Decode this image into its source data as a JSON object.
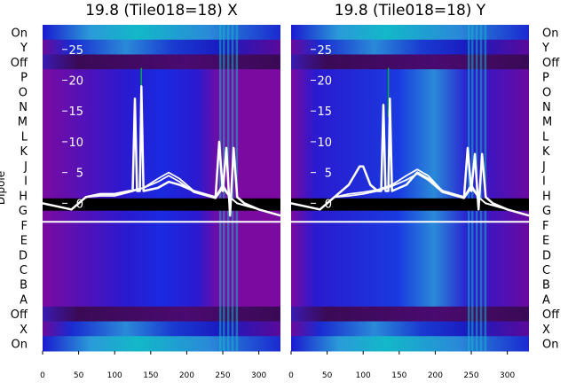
{
  "colors": {
    "purple": "#7a0aa0",
    "dark_purple": "#3a0a55",
    "blue": "#1a1ad0",
    "light_blue": "#2a8ad8",
    "cyan": "#12b8c8",
    "green": "#10a840",
    "trace": "#ffffff",
    "black_band": "#000000"
  },
  "chart_data": [
    {
      "type": "heatmap",
      "title": "19.8 (Tile018=18) X",
      "ylabel": "Dipole",
      "xlim": [
        0,
        330
      ],
      "x_ticks": [
        "0",
        "50",
        "100",
        "150",
        "200",
        "250",
        "300"
      ],
      "x_tick_values": [
        0,
        50,
        100,
        150,
        200,
        250,
        300
      ],
      "y_ticks": [
        "0",
        "5",
        "10",
        "15",
        "20",
        "25"
      ],
      "y_tick_values": [
        0,
        5,
        10,
        15,
        20,
        25
      ],
      "ylim": [
        -24,
        29
      ],
      "rows_top_to_bottom": [
        "On",
        "Y",
        "Off",
        "P",
        "O",
        "N",
        "M",
        "L",
        "K",
        "J",
        "I",
        "H",
        "G",
        "F",
        "E",
        "D",
        "C",
        "B",
        "A",
        "Off",
        "X",
        "On"
      ],
      "traces": [
        {
          "x": [
            0,
            20,
            40,
            60,
            80,
            100,
            120,
            125,
            128,
            131,
            135,
            137,
            140,
            160,
            175,
            190,
            210,
            240,
            245,
            250,
            255,
            260,
            265,
            270,
            280,
            300,
            330
          ],
          "y": [
            0,
            -0.5,
            -1,
            1,
            1.5,
            1.5,
            2,
            2,
            17,
            2,
            2,
            19,
            2,
            2.5,
            3.5,
            3,
            2,
            1,
            10,
            2,
            9,
            -2,
            9,
            1,
            0,
            -1,
            -2
          ]
        },
        {
          "x": [
            0,
            20,
            40,
            60,
            80,
            100,
            120,
            140,
            160,
            175,
            190,
            210,
            240,
            250,
            260,
            270,
            300,
            330
          ],
          "y": [
            0,
            -0.5,
            -1,
            1,
            1.5,
            1.5,
            2,
            2.5,
            4,
            5,
            4,
            2,
            1,
            3,
            1,
            0,
            -1,
            -2
          ]
        },
        {
          "x": [
            0,
            20,
            40,
            60,
            80,
            100,
            120,
            140,
            160,
            175,
            190,
            210,
            240,
            250,
            260,
            270,
            300,
            330
          ],
          "y": [
            0,
            -0.5,
            -1,
            1,
            1.2,
            1.2,
            1.8,
            2.5,
            3.5,
            4.5,
            3.5,
            1.8,
            0.8,
            2.5,
            1,
            0,
            -1,
            -2
          ]
        }
      ]
    },
    {
      "type": "heatmap",
      "title": "19.8 (Tile018=18) Y",
      "ylabel": "",
      "xlim": [
        0,
        330
      ],
      "x_ticks": [
        "0",
        "50",
        "100",
        "150",
        "200",
        "250",
        "300"
      ],
      "x_tick_values": [
        0,
        50,
        100,
        150,
        200,
        250,
        300
      ],
      "y_ticks": [
        "0",
        "5",
        "10",
        "15",
        "20",
        "25"
      ],
      "y_tick_values": [
        0,
        5,
        10,
        15,
        20,
        25
      ],
      "ylim": [
        -24,
        29
      ],
      "rows_top_to_bottom": [
        "On",
        "Y",
        "Off",
        "P",
        "O",
        "N",
        "M",
        "L",
        "K",
        "J",
        "I",
        "H",
        "G",
        "F",
        "E",
        "D",
        "C",
        "B",
        "A",
        "Off",
        "X",
        "On"
      ],
      "traces": [
        {
          "x": [
            0,
            20,
            40,
            60,
            80,
            95,
            100,
            110,
            120,
            125,
            128,
            131,
            135,
            137,
            140,
            160,
            175,
            190,
            210,
            240,
            245,
            250,
            255,
            260,
            265,
            270,
            280,
            300,
            330
          ],
          "y": [
            0,
            -0.5,
            -1,
            1,
            3,
            6,
            6,
            3,
            2,
            2,
            16,
            2,
            2,
            17,
            2,
            3,
            5,
            4,
            2,
            1,
            9,
            2,
            8,
            -1,
            8,
            1,
            0,
            -1,
            -2
          ]
        },
        {
          "x": [
            0,
            20,
            40,
            60,
            80,
            100,
            120,
            140,
            160,
            175,
            190,
            210,
            240,
            250,
            260,
            270,
            300,
            330
          ],
          "y": [
            0,
            -0.5,
            -1,
            1,
            1.5,
            1.8,
            2.2,
            3,
            4.5,
            5.5,
            4.5,
            2,
            1,
            3,
            1,
            0,
            -1,
            -2
          ]
        },
        {
          "x": [
            0,
            20,
            40,
            60,
            80,
            100,
            120,
            140,
            160,
            175,
            190,
            210,
            240,
            250,
            260,
            270,
            300,
            330
          ],
          "y": [
            0,
            -0.5,
            -1,
            1,
            1.2,
            1.5,
            2,
            2.8,
            3.8,
            4.8,
            3.8,
            1.8,
            0.8,
            2.5,
            1,
            0,
            -1,
            -2
          ]
        }
      ]
    }
  ]
}
